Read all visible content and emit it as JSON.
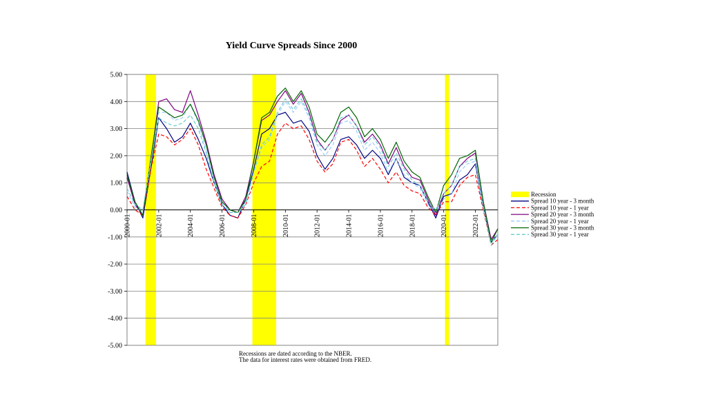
{
  "chart_data": {
    "type": "line",
    "title": "Yield Curve Spreads Since 2000",
    "xlabel": "",
    "ylabel": "",
    "ylim": [
      -5,
      5
    ],
    "xlim": [
      "2000-01",
      "2023-06"
    ],
    "y_ticks": [
      "5.00",
      "4.00",
      "3.00",
      "2.00",
      "1.00",
      "0.00",
      "-1.00",
      "-2.00",
      "-3.00",
      "-4.00",
      "-5.00"
    ],
    "x_ticks": [
      "2000-01",
      "2002-01",
      "2004-01",
      "2006-01",
      "2008-01",
      "2010-01",
      "2012-01",
      "2014-01",
      "2016-01",
      "2018-01",
      "2020-01",
      "2022-01"
    ],
    "grid": true,
    "legend_position": "right",
    "recessions": [
      {
        "start": "2001-03",
        "end": "2001-11"
      },
      {
        "start": "2007-12",
        "end": "2009-06"
      },
      {
        "start": "2020-02",
        "end": "2020-04"
      }
    ],
    "recession_label": "Recession",
    "recession_color": "#ffff00",
    "x": [
      "2000-01",
      "2000-07",
      "2001-01",
      "2001-07",
      "2002-01",
      "2002-07",
      "2003-01",
      "2003-07",
      "2004-01",
      "2004-07",
      "2005-01",
      "2005-07",
      "2006-01",
      "2006-07",
      "2007-01",
      "2007-07",
      "2008-01",
      "2008-07",
      "2009-01",
      "2009-07",
      "2010-01",
      "2010-07",
      "2011-01",
      "2011-07",
      "2012-01",
      "2012-07",
      "2013-01",
      "2013-07",
      "2014-01",
      "2014-07",
      "2015-01",
      "2015-07",
      "2016-01",
      "2016-07",
      "2017-01",
      "2017-07",
      "2018-01",
      "2018-07",
      "2019-01",
      "2019-07",
      "2020-01",
      "2020-07",
      "2021-01",
      "2021-07",
      "2022-01",
      "2022-07",
      "2023-01",
      "2023-06"
    ],
    "series": [
      {
        "name": "Spread 10 year - 3 month",
        "color": "#000080",
        "dash": "solid",
        "values": [
          1.4,
          0.3,
          -0.3,
          1.5,
          3.4,
          3.0,
          2.5,
          2.7,
          3.2,
          2.6,
          1.9,
          1.0,
          0.2,
          -0.2,
          -0.3,
          0.4,
          1.5,
          2.8,
          3.0,
          3.5,
          3.6,
          3.2,
          3.3,
          2.9,
          2.0,
          1.5,
          1.9,
          2.6,
          2.7,
          2.4,
          1.9,
          2.2,
          1.9,
          1.3,
          1.9,
          1.2,
          1.0,
          0.9,
          0.3,
          -0.3,
          0.5,
          0.6,
          1.1,
          1.3,
          1.7,
          0.1,
          -1.2,
          -0.9
        ]
      },
      {
        "name": "Spread 10 year - 1 year",
        "color": "#ff0000",
        "dash": "dashed",
        "values": [
          0.5,
          0.0,
          -0.2,
          1.5,
          2.8,
          2.7,
          2.4,
          2.6,
          3.0,
          2.4,
          1.5,
          0.8,
          0.1,
          -0.2,
          -0.3,
          0.2,
          1.0,
          1.6,
          1.8,
          2.8,
          3.2,
          3.0,
          3.1,
          2.6,
          1.8,
          1.4,
          1.7,
          2.5,
          2.6,
          2.2,
          1.6,
          1.9,
          1.5,
          1.0,
          1.4,
          0.9,
          0.7,
          0.6,
          0.1,
          -0.2,
          0.3,
          0.3,
          0.9,
          1.2,
          1.3,
          0.0,
          -1.3,
          -1.1
        ]
      },
      {
        "name": "Spread 20 year - 3 month",
        "color": "#800080",
        "dash": "solid",
        "values": [
          1.2,
          0.2,
          -0.2,
          1.8,
          4.0,
          4.1,
          3.7,
          3.6,
          4.4,
          3.5,
          2.5,
          1.3,
          0.4,
          0.0,
          -0.1,
          0.5,
          1.8,
          3.3,
          3.5,
          4.0,
          4.4,
          3.9,
          4.3,
          3.6,
          2.6,
          2.2,
          2.6,
          3.3,
          3.5,
          3.1,
          2.5,
          2.8,
          2.4,
          1.7,
          2.3,
          1.6,
          1.2,
          1.1,
          0.4,
          -0.2,
          0.6,
          0.9,
          1.6,
          1.9,
          2.1,
          0.3,
          -1.1,
          -0.7
        ]
      },
      {
        "name": "Spread 20 year - 1 year",
        "color": "#99ccff",
        "dash": "dashed",
        "values": [
          0.7,
          0.1,
          -0.1,
          1.7,
          3.6,
          3.6,
          3.3,
          3.4,
          3.9,
          3.2,
          2.2,
          1.1,
          0.3,
          -0.1,
          -0.1,
          0.3,
          1.4,
          2.3,
          2.6,
          3.5,
          4.0,
          3.6,
          4.0,
          3.4,
          2.4,
          2.0,
          2.4,
          3.2,
          3.3,
          2.9,
          2.2,
          2.5,
          2.1,
          1.4,
          1.9,
          1.3,
          1.0,
          0.8,
          0.2,
          -0.1,
          0.4,
          0.6,
          1.4,
          1.7,
          1.8,
          0.1,
          -1.2,
          -0.9
        ]
      },
      {
        "name": "Spread 30 year - 3 month",
        "color": "#006400",
        "dash": "solid",
        "values": [
          1.3,
          0.3,
          -0.2,
          1.9,
          3.8,
          3.6,
          3.4,
          3.5,
          3.9,
          3.3,
          2.4,
          1.2,
          0.3,
          0.0,
          -0.1,
          0.4,
          1.8,
          3.4,
          3.6,
          4.2,
          4.5,
          4.0,
          4.4,
          3.8,
          2.8,
          2.5,
          2.9,
          3.6,
          3.8,
          3.4,
          2.7,
          3.0,
          2.6,
          1.9,
          2.5,
          1.8,
          1.4,
          1.2,
          0.5,
          -0.1,
          0.9,
          1.3,
          1.9,
          2.0,
          2.2,
          0.3,
          -1.2,
          -0.7
        ]
      },
      {
        "name": "Spread 30 year - 1 year",
        "color": "#66cccc",
        "dash": "dashed",
        "values": [
          0.8,
          0.2,
          0.0,
          1.8,
          3.4,
          3.2,
          3.1,
          3.2,
          3.5,
          3.0,
          2.1,
          1.0,
          0.2,
          -0.1,
          -0.1,
          0.2,
          1.4,
          2.4,
          2.7,
          3.6,
          4.1,
          3.7,
          4.1,
          3.5,
          2.5,
          2.2,
          2.6,
          3.4,
          3.5,
          3.1,
          2.4,
          2.7,
          2.3,
          1.6,
          2.1,
          1.5,
          1.1,
          0.9,
          0.3,
          0.0,
          0.6,
          0.9,
          1.6,
          1.8,
          1.9,
          0.1,
          -1.3,
          -0.9
        ]
      }
    ]
  },
  "notes": {
    "line1": "Recessions are dated according to the NBER.",
    "line2": "The data for interest rates were obtained from FRED."
  }
}
